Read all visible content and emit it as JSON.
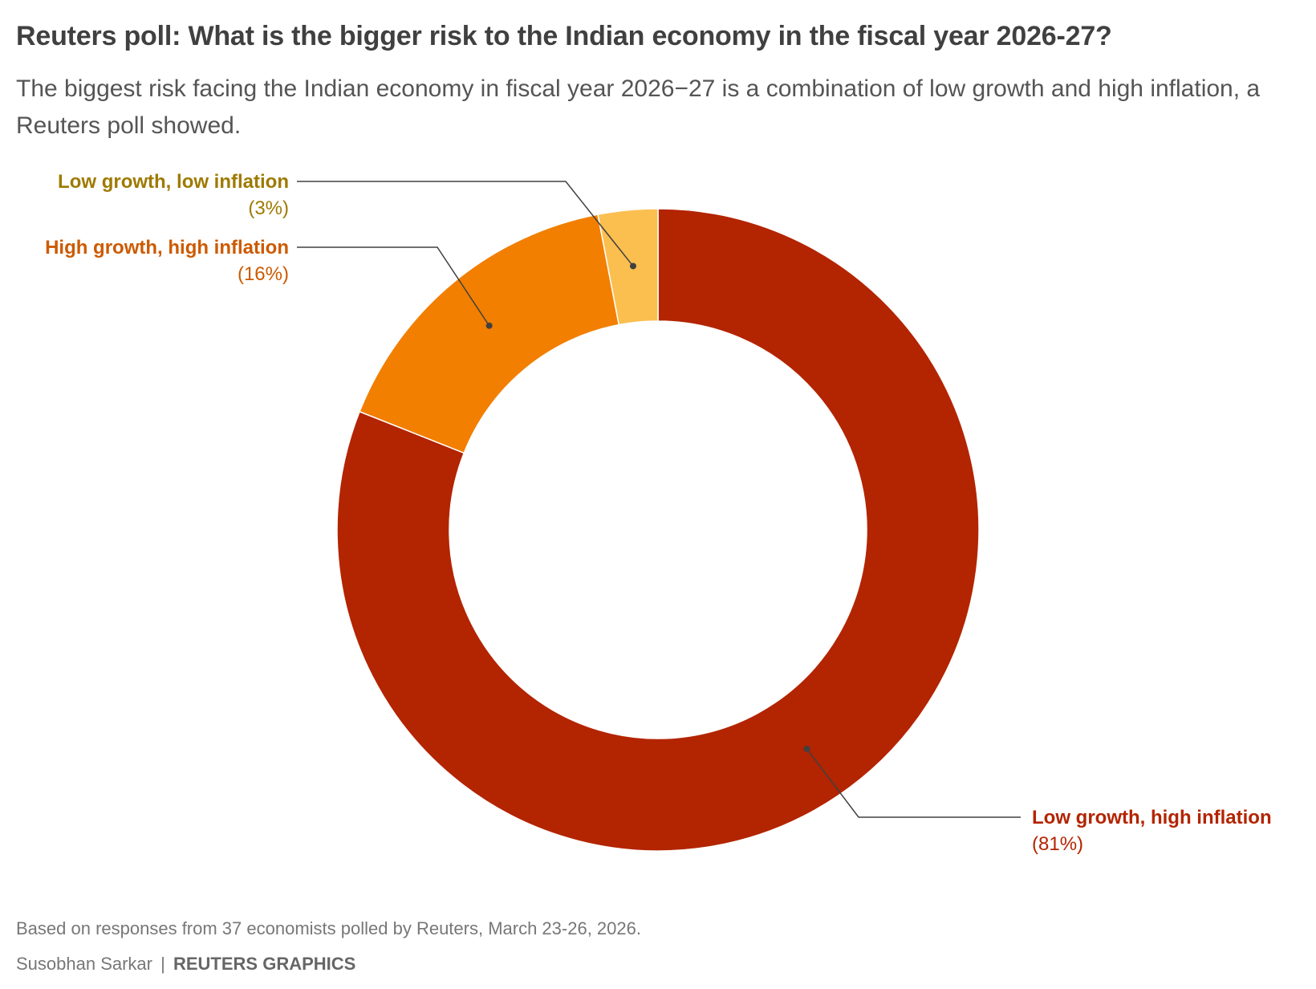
{
  "title": "Reuters poll: What is the bigger risk to the Indian economy in the fiscal year 2026-27?",
  "subtitle": "The biggest risk facing the Indian economy in fiscal year 2026−27 is a combination of low growth and high inflation, a Reuters poll showed.",
  "chart_data": {
    "type": "pie",
    "donut": true,
    "slices": [
      {
        "label": "Low growth, high inflation",
        "value": 81,
        "value_label": "(81%)",
        "color": "#b32400",
        "label_color": "#b32400"
      },
      {
        "label": "High growth, high inflation",
        "value": 16,
        "value_label": "(16%)",
        "color": "#f27f00",
        "label_color": "#cc5a00"
      },
      {
        "label": "Low growth, low inflation",
        "value": 3,
        "value_label": "(3%)",
        "color": "#fbbf50",
        "label_color": "#9e7a00"
      }
    ]
  },
  "footnote": "Based on responses from 37 economists polled by Reuters, March 23-26, 2026.",
  "byline": {
    "author": "Susobhan Sarkar",
    "separator": "|",
    "brand": "REUTERS GRAPHICS"
  }
}
